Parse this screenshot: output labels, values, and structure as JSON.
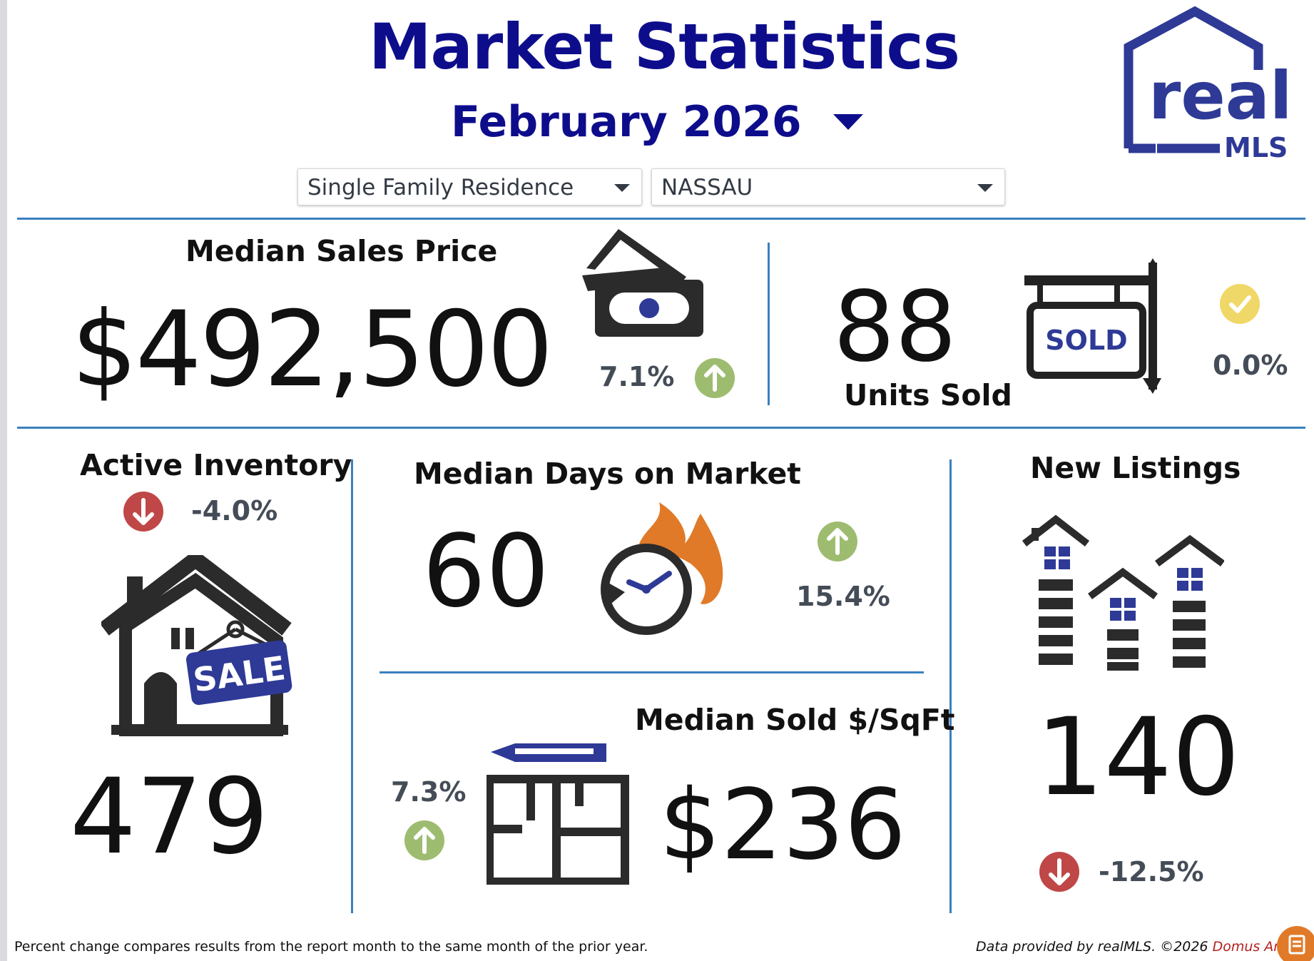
{
  "header": {
    "title": "Market Statistics",
    "month": "February 2026"
  },
  "filters": {
    "property_type": "Single Family Residence",
    "county": "NASSAU"
  },
  "logo": {
    "word": "real",
    "sub": "MLS"
  },
  "median_sales_price": {
    "label": "Median Sales Price",
    "value": "$492,500",
    "change": "7.1%",
    "direction": "up",
    "icon": "money-icon"
  },
  "units_sold": {
    "label": "Units Sold",
    "value": "88",
    "change": "0.0%",
    "direction": "flat",
    "icon": "sold-sign-icon",
    "sign_text": "SOLD"
  },
  "active_inventory": {
    "label": "Active Inventory",
    "value": "479",
    "change": "-4.0%",
    "direction": "down",
    "icon": "house-for-sale-icon",
    "sign_text": "SALE"
  },
  "median_days_on_market": {
    "label": "Median Days on Market",
    "value": "60",
    "change": "15.4%",
    "direction": "up",
    "icon": "clock-fire-icon"
  },
  "median_sold_sqft": {
    "label": "Median Sold $/SqFt",
    "value": "$236",
    "change": "7.3%",
    "direction": "up",
    "icon": "floor-plan-icon"
  },
  "new_listings": {
    "label": "New Listings",
    "value": "140",
    "change": "-12.5%",
    "direction": "down",
    "icon": "buildings-icon"
  },
  "footer": {
    "note": "Percent change compares results from the report month to the same month of the prior year.",
    "credit": "Data provided by realMLS. ©2026",
    "brand": "Domus Analytics"
  },
  "colors": {
    "title": "#0d0d8c",
    "divider": "#3a80c0",
    "up": "#9ebc70",
    "down": "#c04747",
    "check": "#f0d868",
    "accent_blue": "#2e3a96",
    "fire": "#e07a28"
  }
}
